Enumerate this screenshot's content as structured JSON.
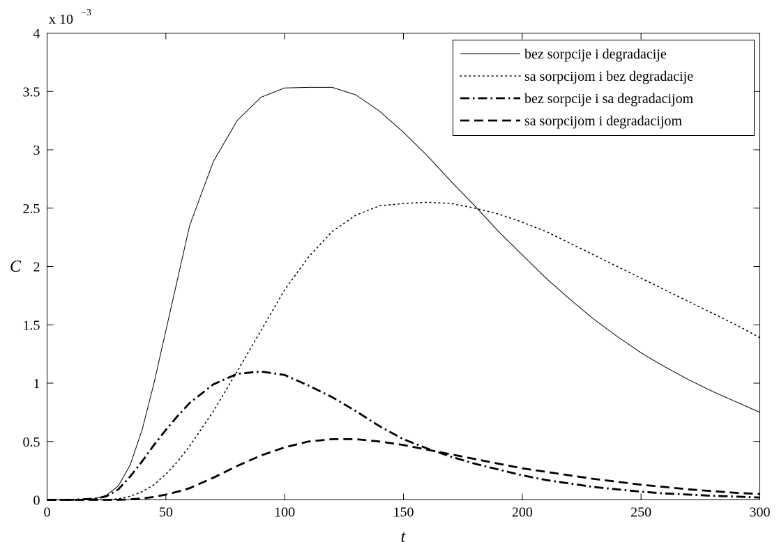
{
  "chart_data": {
    "type": "line",
    "xlabel": "t",
    "ylabel": "C",
    "y_multiplier": {
      "base": "x 10",
      "exponent": "−3"
    },
    "xlim": [
      0,
      300
    ],
    "ylim": [
      0,
      4
    ],
    "x_ticks": [
      0,
      50,
      100,
      150,
      200,
      250,
      300
    ],
    "y_ticks": [
      0,
      0.5,
      1,
      1.5,
      2,
      2.5,
      3,
      3.5,
      4
    ],
    "x_tick_labels": [
      "0",
      "50",
      "100",
      "150",
      "200",
      "250",
      "300"
    ],
    "y_tick_labels": [
      "0",
      "0.5",
      "1",
      "1.5",
      "2",
      "2.5",
      "3",
      "3.5",
      "4"
    ],
    "grid": false,
    "legend_position": "top-right",
    "x": [
      0,
      10,
      20,
      25,
      30,
      35,
      40,
      45,
      50,
      55,
      60,
      70,
      80,
      90,
      100,
      110,
      120,
      130,
      140,
      150,
      160,
      170,
      180,
      190,
      200,
      210,
      220,
      230,
      240,
      250,
      260,
      270,
      280,
      290,
      300
    ],
    "series": [
      {
        "name": "bez sorpcije i degradacije",
        "style": "solid",
        "values": [
          0,
          0,
          0.01,
          0.04,
          0.12,
          0.3,
          0.6,
          1.0,
          1.45,
          1.9,
          2.35,
          2.9,
          3.25,
          3.45,
          3.53,
          3.535,
          3.535,
          3.47,
          3.33,
          3.15,
          2.95,
          2.73,
          2.52,
          2.3,
          2.1,
          1.9,
          1.72,
          1.55,
          1.4,
          1.26,
          1.14,
          1.03,
          0.93,
          0.84,
          0.75
        ]
      },
      {
        "name": "sa sorpcijom i bez degradacije",
        "style": "dotted",
        "values": [
          0,
          0,
          0,
          0,
          0.01,
          0.03,
          0.07,
          0.13,
          0.22,
          0.33,
          0.46,
          0.76,
          1.1,
          1.45,
          1.8,
          2.08,
          2.3,
          2.44,
          2.52,
          2.54,
          2.55,
          2.54,
          2.5,
          2.45,
          2.38,
          2.3,
          2.2,
          2.1,
          2.0,
          1.9,
          1.8,
          1.7,
          1.6,
          1.5,
          1.39
        ]
      },
      {
        "name": "bez sorpcije i sa degradacijom",
        "style": "dashdot",
        "values": [
          0,
          0,
          0.01,
          0.03,
          0.09,
          0.2,
          0.33,
          0.47,
          0.6,
          0.72,
          0.83,
          0.99,
          1.08,
          1.1,
          1.07,
          0.98,
          0.88,
          0.76,
          0.63,
          0.52,
          0.44,
          0.37,
          0.31,
          0.26,
          0.21,
          0.17,
          0.14,
          0.11,
          0.09,
          0.07,
          0.055,
          0.045,
          0.035,
          0.028,
          0.02
        ]
      },
      {
        "name": "sa sorpcijom i degradacijom",
        "style": "dashed",
        "values": [
          0,
          0,
          0,
          0,
          0,
          0.005,
          0.012,
          0.025,
          0.045,
          0.07,
          0.1,
          0.19,
          0.29,
          0.38,
          0.45,
          0.5,
          0.52,
          0.52,
          0.5,
          0.47,
          0.43,
          0.39,
          0.35,
          0.31,
          0.27,
          0.24,
          0.21,
          0.18,
          0.155,
          0.13,
          0.11,
          0.09,
          0.075,
          0.06,
          0.05
        ]
      }
    ]
  }
}
